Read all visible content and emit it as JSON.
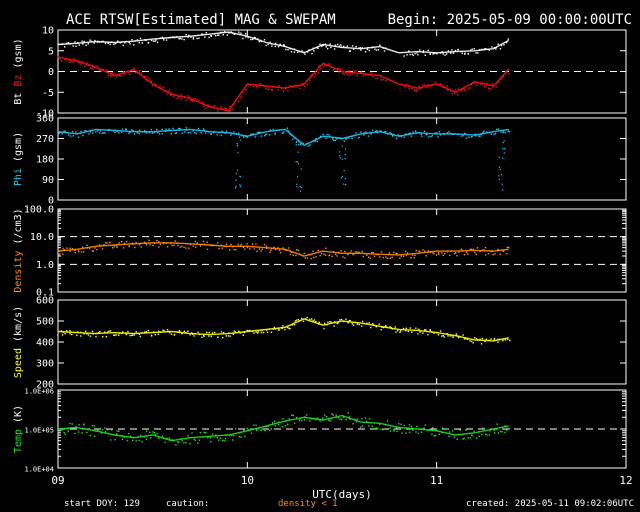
{
  "header": {
    "title": "ACE RTSW[Estimated] MAG & SWEPAM",
    "begin": "Begin: 2025-05-09 00:00:00UTC"
  },
  "footer": {
    "start_doy": "start DOY: 129",
    "caution": "caution:",
    "density_note": "density < 1",
    "created": "created: 2025-05-11 09:02:06UTC"
  },
  "colors": {
    "background": "#000000",
    "axes": "#ffffff",
    "bt": "#ffffff",
    "bz": "#ff1010",
    "phi": "#20c8f0",
    "density": "#ff8c10",
    "speed": "#ffff20",
    "temp": "#20e020",
    "caution": "#ff8c10"
  },
  "chart_data": {
    "type": "scatter",
    "x_axis": {
      "label": "UTC(days)",
      "range": [
        9,
        12
      ],
      "ticks": [
        9,
        10,
        11,
        12
      ],
      "tick_labels": [
        "09",
        "10",
        "11",
        "12"
      ]
    },
    "data_end_day": 11.38,
    "panels": [
      {
        "id": "mag",
        "ylabel_parts": [
          {
            "text": "Bt",
            "color": "#ffffff"
          },
          {
            "text": " Bz",
            "color": "#ff1010"
          },
          {
            "text": " (gsm)",
            "color": "#ffffff"
          }
        ],
        "ylim": [
          -10,
          10
        ],
        "ticks": [
          -10,
          -5,
          0,
          5,
          10
        ],
        "tick_labels": [
          "-10",
          "-5",
          "0",
          "5",
          "10"
        ],
        "reference_lines": [
          0
        ],
        "scale": "linear",
        "series": [
          {
            "name": "Bt",
            "color": "#ffffff",
            "x": [
              9.0,
              9.1,
              9.2,
              9.3,
              9.4,
              9.5,
              9.6,
              9.7,
              9.8,
              9.9,
              10.0,
              10.1,
              10.2,
              10.3,
              10.4,
              10.5,
              10.6,
              10.7,
              10.8,
              10.9,
              11.0,
              11.1,
              11.2,
              11.3,
              11.38
            ],
            "y": [
              6.5,
              6.8,
              7.2,
              7.0,
              7.3,
              7.8,
              8.2,
              8.5,
              9.0,
              9.5,
              8.5,
              7.0,
              6.0,
              4.5,
              6.5,
              5.8,
              5.5,
              6.0,
              4.5,
              4.8,
              4.5,
              4.8,
              5.0,
              5.5,
              7.5
            ]
          },
          {
            "name": "Bz",
            "color": "#ff1010",
            "x": [
              9.0,
              9.1,
              9.2,
              9.3,
              9.4,
              9.5,
              9.6,
              9.7,
              9.8,
              9.9,
              10.0,
              10.1,
              10.2,
              10.3,
              10.4,
              10.5,
              10.6,
              10.7,
              10.8,
              10.9,
              11.0,
              11.1,
              11.2,
              11.3,
              11.38
            ],
            "y": [
              3.5,
              2.5,
              1.0,
              -1.0,
              0.5,
              -3.0,
              -5.5,
              -6.5,
              -8.5,
              -9.5,
              -3.0,
              -3.5,
              -4.0,
              -3.0,
              2.0,
              0.0,
              -0.5,
              -1.0,
              -3.0,
              -4.0,
              -3.0,
              -5.0,
              -2.5,
              -3.5,
              0.5
            ]
          }
        ]
      },
      {
        "id": "phi",
        "ylabel_parts": [
          {
            "text": "Phi",
            "color": "#20c8f0"
          },
          {
            "text": " (gsm)",
            "color": "#ffffff"
          }
        ],
        "ylim": [
          0,
          360
        ],
        "ticks": [
          0,
          90,
          180,
          270,
          360
        ],
        "tick_labels": [
          "0",
          "90",
          "180",
          "270",
          "360"
        ],
        "reference_lines": [],
        "scale": "linear",
        "series": [
          {
            "name": "Phi",
            "color": "#20c8f0",
            "x": [
              9.0,
              9.1,
              9.2,
              9.3,
              9.4,
              9.5,
              9.6,
              9.7,
              9.8,
              9.9,
              10.0,
              10.1,
              10.2,
              10.3,
              10.4,
              10.5,
              10.6,
              10.7,
              10.8,
              10.9,
              11.0,
              11.1,
              11.2,
              11.3,
              11.38
            ],
            "y": [
              300,
              290,
              310,
              305,
              300,
              300,
              305,
              310,
              300,
              295,
              280,
              300,
              310,
              240,
              280,
              270,
              290,
              300,
              280,
              295,
              290,
              290,
              285,
              300,
              310
            ]
          }
        ]
      },
      {
        "id": "density",
        "ylabel_parts": [
          {
            "text": "Density",
            "color": "#ff8c10"
          },
          {
            "text": " (/cm3)",
            "color": "#ffffff"
          }
        ],
        "ylim": [
          0.1,
          100
        ],
        "ticks": [
          0.1,
          1,
          10,
          100
        ],
        "tick_labels": [
          "0.1",
          "1.0",
          "10.0",
          "100.0"
        ],
        "reference_lines": [
          1,
          10
        ],
        "scale": "log",
        "series": [
          {
            "name": "Density",
            "color": "#ff8c10",
            "x": [
              9.0,
              9.1,
              9.2,
              9.3,
              9.4,
              9.5,
              9.6,
              9.7,
              9.8,
              9.9,
              10.0,
              10.1,
              10.2,
              10.3,
              10.4,
              10.5,
              10.6,
              10.7,
              10.8,
              10.9,
              11.0,
              11.1,
              11.2,
              11.3,
              11.38
            ],
            "y": [
              3.0,
              3.5,
              4.5,
              5.0,
              5.5,
              6.0,
              6.0,
              5.5,
              5.0,
              4.5,
              4.5,
              4.0,
              3.5,
              2.0,
              3.0,
              2.5,
              2.5,
              2.3,
              2.2,
              2.5,
              3.0,
              3.0,
              3.2,
              3.0,
              3.5
            ]
          }
        ]
      },
      {
        "id": "speed",
        "ylabel_parts": [
          {
            "text": "Speed",
            "color": "#ffff20"
          },
          {
            "text": " (km/s)",
            "color": "#ffffff"
          }
        ],
        "ylim": [
          200,
          600
        ],
        "ticks": [
          200,
          300,
          400,
          500,
          600
        ],
        "tick_labels": [
          "200",
          "300",
          "400",
          "500",
          "600"
        ],
        "reference_lines": [],
        "scale": "linear",
        "series": [
          {
            "name": "Speed",
            "color": "#ffff20",
            "x": [
              9.0,
              9.1,
              9.2,
              9.3,
              9.4,
              9.5,
              9.6,
              9.7,
              9.8,
              9.9,
              10.0,
              10.1,
              10.2,
              10.3,
              10.4,
              10.5,
              10.6,
              10.7,
              10.8,
              10.9,
              11.0,
              11.1,
              11.2,
              11.3,
              11.38
            ],
            "y": [
              450,
              445,
              440,
              445,
              440,
              445,
              450,
              440,
              435,
              440,
              450,
              460,
              470,
              510,
              480,
              500,
              490,
              475,
              460,
              455,
              445,
              430,
              410,
              405,
              420
            ]
          }
        ]
      },
      {
        "id": "temp",
        "ylabel_parts": [
          {
            "text": "Temp",
            "color": "#20e020"
          },
          {
            "text": " (K)",
            "color": "#ffffff"
          }
        ],
        "ylim": [
          10000,
          1000000
        ],
        "ticks": [
          10000,
          100000,
          1000000
        ],
        "tick_labels": [
          "1.0E+04",
          "1.0E+05",
          "1.0E+06"
        ],
        "reference_lines": [
          100000
        ],
        "scale": "log",
        "series": [
          {
            "name": "Temp",
            "color": "#20e020",
            "x": [
              9.0,
              9.1,
              9.2,
              9.3,
              9.4,
              9.5,
              9.6,
              9.7,
              9.8,
              9.9,
              10.0,
              10.1,
              10.2,
              10.3,
              10.4,
              10.5,
              10.6,
              10.7,
              10.8,
              10.9,
              11.0,
              11.1,
              11.2,
              11.3,
              11.38
            ],
            "y": [
              100000,
              110000,
              90000,
              70000,
              60000,
              70000,
              50000,
              60000,
              65000,
              70000,
              90000,
              120000,
              160000,
              200000,
              170000,
              220000,
              150000,
              140000,
              110000,
              100000,
              90000,
              70000,
              80000,
              100000,
              120000
            ]
          }
        ]
      }
    ]
  }
}
